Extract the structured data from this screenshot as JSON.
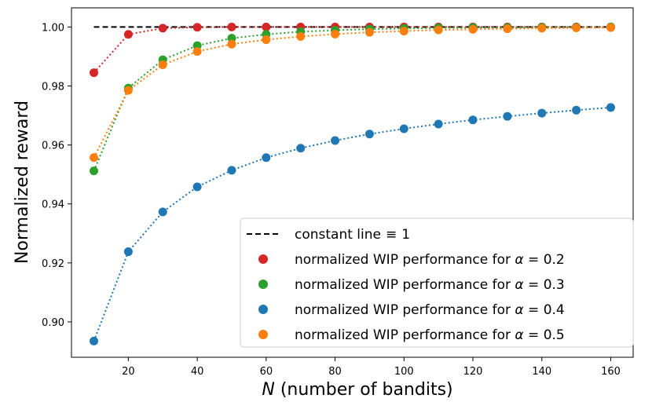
{
  "chart_data": {
    "type": "scatter",
    "xlabel_italic": "N",
    "xlabel_rest": " (number of bandits)",
    "ylabel": "Normalized reward",
    "xlim": [
      3.5,
      166.5
    ],
    "ylim": [
      0.888,
      1.0065
    ],
    "xticks": [
      20,
      40,
      60,
      80,
      100,
      120,
      140,
      160
    ],
    "xtick_labels": [
      "20",
      "40",
      "60",
      "80",
      "100",
      "120",
      "140",
      "160"
    ],
    "yticks": [
      0.9,
      0.92,
      0.94,
      0.96,
      0.98,
      1.0
    ],
    "ytick_labels": [
      "0.90",
      "0.92",
      "0.94",
      "0.96",
      "0.98",
      "1.00"
    ],
    "x": [
      10,
      20,
      30,
      40,
      50,
      60,
      70,
      80,
      90,
      100,
      110,
      120,
      130,
      140,
      150,
      160
    ],
    "constant_line": {
      "name": "constant line",
      "symbol": "≡",
      "value_label": "1",
      "x": [
        10,
        160
      ],
      "y": 1.0
    },
    "series": [
      {
        "name": "normalized WIP performance for",
        "alpha": "α",
        "eq": "=",
        "param": "0.2",
        "color": "#d62728",
        "values": [
          0.9845,
          0.9975,
          0.9996,
          0.9999,
          1.0,
          1.0,
          1.0,
          1.0,
          1.0,
          1.0,
          1.0,
          1.0,
          1.0,
          1.0,
          1.0,
          1.0
        ]
      },
      {
        "name": "normalized WIP performance for",
        "alpha": "α",
        "eq": "=",
        "param": "0.3",
        "color": "#2ca02c",
        "values": [
          0.9512,
          0.9793,
          0.9889,
          0.9937,
          0.9962,
          0.9975,
          0.9984,
          0.9989,
          0.9993,
          0.9995,
          0.9997,
          0.9998,
          0.9998,
          0.9999,
          0.9999,
          1.0
        ]
      },
      {
        "name": "normalized WIP performance for",
        "alpha": "α",
        "eq": "=",
        "param": "0.4",
        "color": "#1f77b4",
        "values": [
          0.8935,
          0.9238,
          0.9373,
          0.9458,
          0.9514,
          0.9557,
          0.9589,
          0.9615,
          0.9637,
          0.9655,
          0.9671,
          0.9685,
          0.9697,
          0.9708,
          0.9718,
          0.9727
        ]
      },
      {
        "name": "normalized WIP performance for",
        "alpha": "α",
        "eq": "=",
        "param": "0.5",
        "color": "#ff7f0e",
        "values": [
          0.9557,
          0.9785,
          0.9872,
          0.9917,
          0.9942,
          0.9957,
          0.9968,
          0.9976,
          0.9982,
          0.9986,
          0.999,
          0.9992,
          0.9994,
          0.9996,
          0.9997,
          0.9998
        ]
      }
    ],
    "legend_position": "lower-right"
  }
}
